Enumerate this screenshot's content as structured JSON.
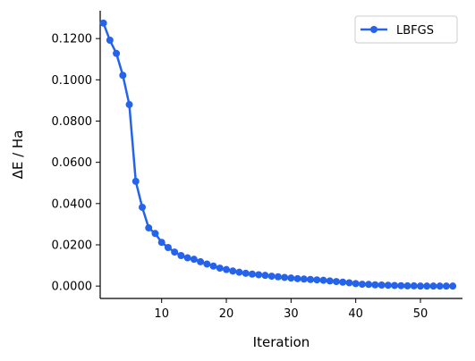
{
  "chart_data": {
    "type": "line",
    "title": "",
    "xlabel": "Iteration",
    "ylabel": "ΔE / Ha",
    "xlim": [
      0.5,
      56.5
    ],
    "ylim": [
      -0.006,
      0.1335
    ],
    "x_ticks": [
      10,
      20,
      30,
      40,
      50
    ],
    "x_tick_labels": [
      "10",
      "20",
      "30",
      "40",
      "50"
    ],
    "y_ticks": [
      0,
      0.02,
      0.04,
      0.06,
      0.08,
      0.1,
      0.12
    ],
    "y_tick_labels": [
      "0.0000",
      "0.0200",
      "0.0400",
      "0.0600",
      "0.0800",
      "0.1000",
      "0.1200"
    ],
    "grid": false,
    "legend_position": "top-right",
    "series": [
      {
        "name": "LBFGS",
        "color": "#2563eb",
        "marker": "circle",
        "x": [
          1,
          2,
          3,
          4,
          5,
          6,
          7,
          8,
          9,
          10,
          11,
          12,
          13,
          14,
          15,
          16,
          17,
          18,
          19,
          20,
          21,
          22,
          23,
          24,
          25,
          26,
          27,
          28,
          29,
          30,
          31,
          32,
          33,
          34,
          35,
          36,
          37,
          38,
          39,
          40,
          41,
          42,
          43,
          44,
          45,
          46,
          47,
          48,
          49,
          50,
          51,
          52,
          53,
          54,
          55
        ],
        "values": [
          0.1275,
          0.1192,
          0.1128,
          0.1022,
          0.088,
          0.0508,
          0.0382,
          0.0282,
          0.0255,
          0.0212,
          0.0187,
          0.0165,
          0.0148,
          0.0137,
          0.013,
          0.0118,
          0.0107,
          0.0097,
          0.0087,
          0.008,
          0.0073,
          0.0067,
          0.0062,
          0.0058,
          0.0055,
          0.0052,
          0.0048,
          0.0045,
          0.0042,
          0.0039,
          0.0036,
          0.0034,
          0.0032,
          0.003,
          0.0028,
          0.0025,
          0.0022,
          0.0019,
          0.0016,
          0.0012,
          0.0009,
          0.0008,
          0.0006,
          0.0005,
          0.0004,
          0.0003,
          0.0002,
          0.0001,
          0.0001,
          0.0,
          0.0,
          0.0,
          0.0,
          0.0,
          0.0
        ]
      }
    ]
  }
}
